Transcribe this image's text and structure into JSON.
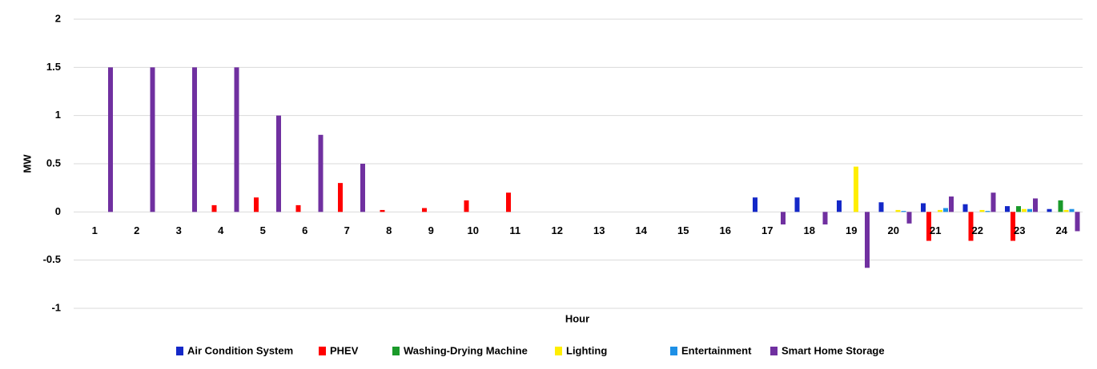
{
  "chart_data": {
    "type": "bar",
    "x_label": "Hour",
    "y_label": "MW",
    "categories": [
      "1",
      "2",
      "3",
      "4",
      "5",
      "6",
      "7",
      "8",
      "9",
      "10",
      "11",
      "12",
      "13",
      "14",
      "15",
      "16",
      "17",
      "18",
      "19",
      "20",
      "21",
      "22",
      "23",
      "24"
    ],
    "series": [
      {
        "name": "Air Condition System",
        "color": "#1428c8",
        "values": [
          0,
          0,
          0,
          0,
          0,
          0,
          0,
          0,
          0,
          0,
          0,
          0,
          0,
          0,
          0,
          0,
          0.15,
          0.15,
          0.12,
          0.1,
          0.09,
          0.08,
          0.06,
          0.03
        ]
      },
      {
        "name": "PHEV",
        "color": "#ff0000",
        "values": [
          0,
          0,
          0,
          0.07,
          0.15,
          0.07,
          0.3,
          0.02,
          0.04,
          0.12,
          0.2,
          0,
          0,
          0,
          0,
          0,
          0,
          0,
          0,
          0,
          -0.3,
          -0.3,
          -0.3,
          0
        ]
      },
      {
        "name": "Washing-Drying Machine",
        "color": "#1a9a2a",
        "values": [
          0,
          0,
          0,
          0,
          0,
          0,
          0,
          0,
          0,
          0,
          0,
          0,
          0,
          0,
          0,
          0,
          0,
          0,
          0,
          0,
          0,
          0,
          0.06,
          0.12
        ]
      },
      {
        "name": "Lighting",
        "color": "#ffee00",
        "values": [
          0,
          0,
          0,
          0,
          0,
          0,
          0,
          0,
          0,
          0,
          0,
          0,
          0,
          0,
          0,
          0,
          0,
          0,
          0.47,
          0.02,
          0.02,
          0.02,
          0.03,
          0.02
        ]
      },
      {
        "name": "Entertainment",
        "color": "#1e90e6",
        "values": [
          0,
          0,
          0,
          0,
          0,
          0,
          0,
          0,
          0,
          0,
          0,
          0,
          0,
          0,
          0,
          0,
          0,
          0,
          0,
          0.01,
          0.04,
          0.01,
          0.03,
          0.03
        ]
      },
      {
        "name": "Smart Home Storage",
        "color": "#7030a0",
        "values": [
          1.5,
          1.5,
          1.5,
          1.5,
          1.0,
          0.8,
          0.5,
          0,
          0,
          0,
          0,
          0,
          0,
          0,
          0,
          0,
          -0.13,
          -0.13,
          -0.58,
          -0.12,
          0.16,
          0.2,
          0.14,
          -0.2
        ]
      }
    ],
    "ylim": [
      -1,
      2
    ],
    "yticks": [
      2,
      1.5,
      1,
      0.5,
      0,
      -0.5,
      -1
    ],
    "grid": true,
    "legend": "bottom"
  }
}
